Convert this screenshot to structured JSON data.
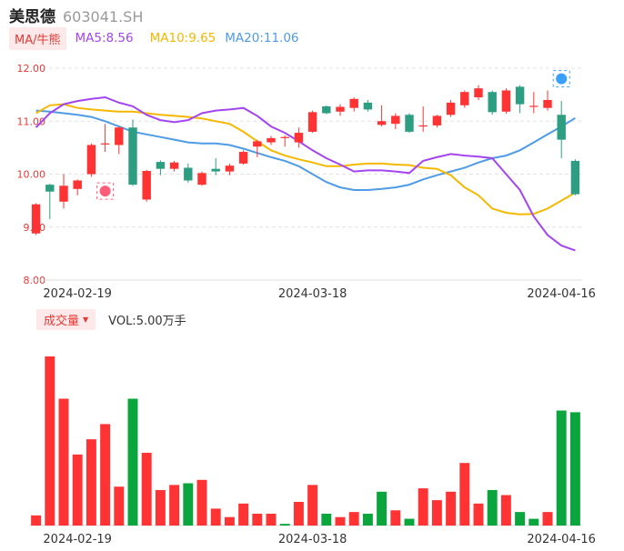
{
  "header": {
    "name": "美思德",
    "code": "603041.SH"
  },
  "ma": {
    "tag": "MA/牛熊",
    "items": [
      {
        "label": "MA5:8.56",
        "color": "#a445f0"
      },
      {
        "label": "MA10:9.65",
        "color": "#f5b800"
      },
      {
        "label": "MA20:11.06",
        "color": "#4e9be6"
      }
    ]
  },
  "volume": {
    "tag": "成交量",
    "label": "VOL:5.00万手"
  },
  "colors": {
    "up": "#ff3333",
    "down": "#0aa53c",
    "candle_down": "#2e9e82"
  },
  "chart_data": {
    "type": "candlestick",
    "ylim": [
      8.0,
      12.0
    ],
    "yticks": [
      "12.00",
      "11.00",
      "10.00",
      "9.00",
      "8.00"
    ],
    "x_ticks": [
      {
        "index": 3,
        "label": "2024-02-19"
      },
      {
        "index": 20,
        "label": "2024-03-18"
      },
      {
        "index": 38,
        "label": "2024-04-16"
      }
    ],
    "candles": [
      {
        "o": 8.88,
        "h": 9.45,
        "l": 8.85,
        "c": 9.43
      },
      {
        "o": 9.8,
        "h": 9.82,
        "l": 9.15,
        "c": 9.67
      },
      {
        "o": 9.48,
        "h": 10.0,
        "l": 9.35,
        "c": 9.78
      },
      {
        "o": 9.72,
        "h": 9.9,
        "l": 9.6,
        "c": 9.88
      },
      {
        "o": 10.0,
        "h": 10.58,
        "l": 9.95,
        "c": 10.55
      },
      {
        "o": 10.58,
        "h": 10.95,
        "l": 10.42,
        "c": 10.58
      },
      {
        "o": 10.55,
        "h": 10.9,
        "l": 10.38,
        "c": 10.88
      },
      {
        "o": 10.88,
        "h": 11.03,
        "l": 9.78,
        "c": 9.8
      },
      {
        "o": 9.52,
        "h": 10.08,
        "l": 9.48,
        "c": 10.06
      },
      {
        "o": 10.23,
        "h": 10.26,
        "l": 9.98,
        "c": 10.1
      },
      {
        "o": 10.1,
        "h": 10.25,
        "l": 10.05,
        "c": 10.22
      },
      {
        "o": 10.12,
        "h": 10.2,
        "l": 9.84,
        "c": 9.88
      },
      {
        "o": 9.8,
        "h": 10.05,
        "l": 9.78,
        "c": 10.02
      },
      {
        "o": 10.1,
        "h": 10.3,
        "l": 9.98,
        "c": 10.05
      },
      {
        "o": 10.05,
        "h": 10.2,
        "l": 9.98,
        "c": 10.16
      },
      {
        "o": 10.2,
        "h": 10.45,
        "l": 10.18,
        "c": 10.42
      },
      {
        "o": 10.52,
        "h": 10.65,
        "l": 10.32,
        "c": 10.62
      },
      {
        "o": 10.6,
        "h": 10.72,
        "l": 10.55,
        "c": 10.68
      },
      {
        "o": 10.68,
        "h": 10.73,
        "l": 10.52,
        "c": 10.7
      },
      {
        "o": 10.6,
        "h": 10.88,
        "l": 10.5,
        "c": 10.78
      },
      {
        "o": 10.8,
        "h": 11.2,
        "l": 10.78,
        "c": 11.17
      },
      {
        "o": 11.28,
        "h": 11.3,
        "l": 11.13,
        "c": 11.15
      },
      {
        "o": 11.18,
        "h": 11.32,
        "l": 11.1,
        "c": 11.27
      },
      {
        "o": 11.25,
        "h": 11.45,
        "l": 11.18,
        "c": 11.42
      },
      {
        "o": 11.35,
        "h": 11.4,
        "l": 11.18,
        "c": 11.22
      },
      {
        "o": 10.93,
        "h": 11.3,
        "l": 10.9,
        "c": 11.0
      },
      {
        "o": 10.95,
        "h": 11.15,
        "l": 10.85,
        "c": 11.1
      },
      {
        "o": 11.12,
        "h": 11.15,
        "l": 10.78,
        "c": 10.8
      },
      {
        "o": 10.9,
        "h": 11.28,
        "l": 10.8,
        "c": 10.92
      },
      {
        "o": 10.92,
        "h": 11.12,
        "l": 10.88,
        "c": 11.1
      },
      {
        "o": 11.12,
        "h": 11.4,
        "l": 11.08,
        "c": 11.35
      },
      {
        "o": 11.3,
        "h": 11.58,
        "l": 11.25,
        "c": 11.55
      },
      {
        "o": 11.45,
        "h": 11.68,
        "l": 11.4,
        "c": 11.62
      },
      {
        "o": 11.55,
        "h": 11.58,
        "l": 11.12,
        "c": 11.17
      },
      {
        "o": 11.18,
        "h": 11.62,
        "l": 11.14,
        "c": 11.58
      },
      {
        "o": 11.65,
        "h": 11.68,
        "l": 11.15,
        "c": 11.32
      },
      {
        "o": 11.28,
        "h": 11.55,
        "l": 11.15,
        "c": 11.29
      },
      {
        "o": 11.25,
        "h": 11.58,
        "l": 11.2,
        "c": 11.4
      },
      {
        "o": 11.12,
        "h": 11.38,
        "l": 10.3,
        "c": 10.65
      },
      {
        "o": 10.25,
        "h": 10.28,
        "l": 9.6,
        "c": 9.62
      }
    ],
    "ma5": [
      10.88,
      11.15,
      11.32,
      11.38,
      11.42,
      11.45,
      11.35,
      11.28,
      11.12,
      11.02,
      10.98,
      11.02,
      11.15,
      11.2,
      11.22,
      11.25,
      11.1,
      10.9,
      10.78,
      10.62,
      10.45,
      10.3,
      10.18,
      10.05,
      10.07,
      10.07,
      10.05,
      10.02,
      10.25,
      10.32,
      10.38,
      10.35,
      10.33,
      10.3,
      10.0,
      9.7,
      9.2,
      8.85,
      8.65,
      8.56
    ],
    "ma10": [
      11.15,
      11.3,
      11.32,
      11.25,
      11.22,
      11.2,
      11.18,
      11.18,
      11.15,
      11.12,
      11.1,
      11.08,
      11.05,
      11.0,
      10.95,
      10.8,
      10.62,
      10.45,
      10.35,
      10.28,
      10.22,
      10.15,
      10.15,
      10.18,
      10.2,
      10.2,
      10.18,
      10.17,
      10.12,
      10.1,
      9.98,
      9.75,
      9.6,
      9.35,
      9.27,
      9.24,
      9.25,
      9.35,
      9.5,
      9.65
    ],
    "ma20": [
      11.2,
      11.18,
      11.15,
      11.12,
      11.08,
      11.0,
      10.9,
      10.8,
      10.75,
      10.7,
      10.65,
      10.6,
      10.58,
      10.58,
      10.55,
      10.48,
      10.4,
      10.32,
      10.25,
      10.15,
      10.0,
      9.85,
      9.75,
      9.7,
      9.7,
      9.72,
      9.75,
      9.8,
      9.9,
      9.98,
      10.05,
      10.12,
      10.22,
      10.3,
      10.35,
      10.45,
      10.6,
      10.75,
      10.9,
      11.06
    ],
    "volume_max": 100,
    "volume": [
      6,
      100,
      75,
      42,
      51,
      60,
      23,
      75,
      43,
      21,
      24,
      25,
      27,
      10,
      5,
      13,
      7,
      7,
      1,
      14,
      24,
      7,
      5,
      8,
      7,
      20,
      9,
      4,
      22,
      15,
      20,
      37,
      13,
      21,
      18,
      8,
      4,
      8,
      68,
      67
    ],
    "volume_dir": [
      "up",
      "up",
      "up",
      "up",
      "up",
      "up",
      "up",
      "down",
      "up",
      "up",
      "up",
      "down",
      "up",
      "up",
      "up",
      "up",
      "up",
      "up",
      "down",
      "up",
      "up",
      "down",
      "up",
      "up",
      "down",
      "down",
      "up",
      "down",
      "up",
      "up",
      "up",
      "up",
      "up",
      "down",
      "up",
      "down",
      "down",
      "up",
      "down",
      "down"
    ]
  }
}
